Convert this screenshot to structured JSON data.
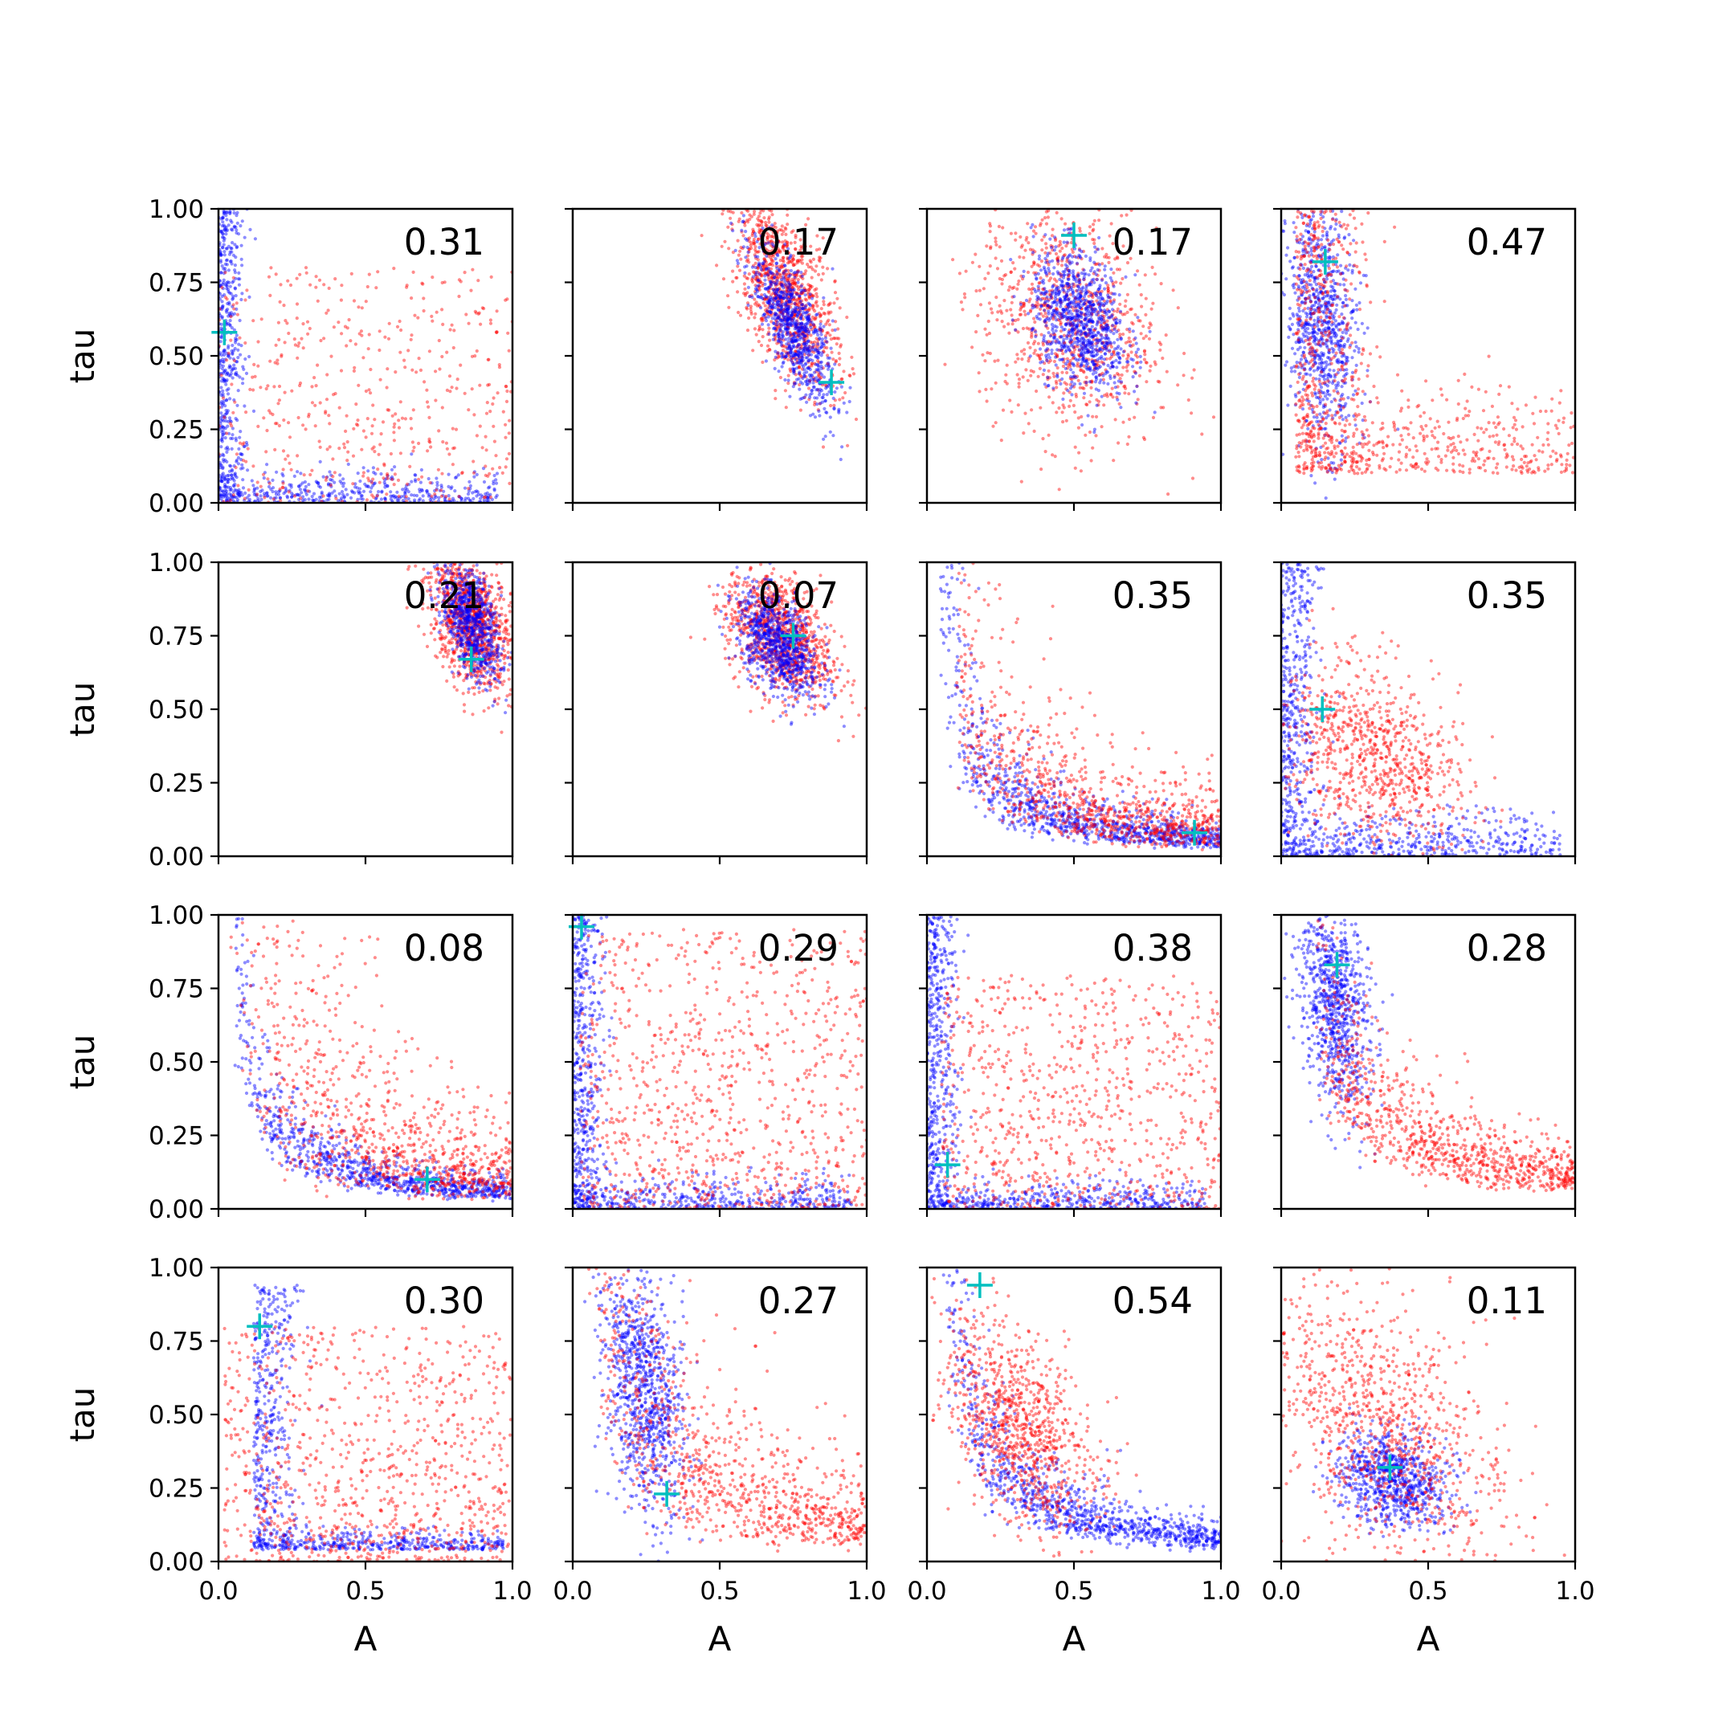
{
  "figure": {
    "xlabel": "A",
    "ylabel": "tau",
    "xticks": [
      "0.0",
      "0.5",
      "1.0"
    ],
    "yticks": [
      "0.00",
      "0.25",
      "0.50",
      "0.75",
      "1.00"
    ],
    "colors": {
      "series_a": "#ff0000",
      "series_b": "#0000ff",
      "marker": "#00bfbf",
      "axes": "#000000"
    }
  },
  "chart_data": [
    {
      "type": "scatter",
      "label": "0.31",
      "marker": [
        0.02,
        0.58
      ],
      "xlim": [
        0,
        1
      ],
      "ylim": [
        0,
        1
      ],
      "dists": [
        {
          "color": "blue",
          "n": 900,
          "shape": "L",
          "x0": 0.0,
          "y0": 0.0,
          "sx": 0.04,
          "sy": 0.05,
          "ax": 0.95,
          "ay": 1.0
        },
        {
          "color": "red",
          "n": 500,
          "shape": "box",
          "x0": 0.0,
          "x1": 1.0,
          "y0": 0.0,
          "y1": 0.8
        }
      ]
    },
    {
      "type": "scatter",
      "label": "0.17",
      "marker": [
        0.88,
        0.41
      ],
      "xlim": [
        0,
        1
      ],
      "ylim": [
        0,
        1
      ],
      "dists": [
        {
          "color": "red",
          "n": 1000,
          "shape": "gauss",
          "cx": 0.72,
          "cy": 0.72,
          "sx": 0.09,
          "sy": 0.17,
          "rho": -0.6
        },
        {
          "color": "blue",
          "n": 800,
          "shape": "gauss",
          "cx": 0.75,
          "cy": 0.6,
          "sx": 0.07,
          "sy": 0.14,
          "rho": -0.75
        }
      ]
    },
    {
      "type": "scatter",
      "label": "0.17",
      "marker": [
        0.5,
        0.91
      ],
      "xlim": [
        0,
        1
      ],
      "ylim": [
        0,
        1
      ],
      "dists": [
        {
          "color": "red",
          "n": 900,
          "shape": "gauss",
          "cx": 0.48,
          "cy": 0.62,
          "sx": 0.15,
          "sy": 0.2,
          "rho": -0.2
        },
        {
          "color": "blue",
          "n": 900,
          "shape": "gauss",
          "cx": 0.52,
          "cy": 0.62,
          "sx": 0.08,
          "sy": 0.12,
          "rho": -0.3
        }
      ]
    },
    {
      "type": "scatter",
      "label": "0.47",
      "marker": [
        0.15,
        0.82
      ],
      "xlim": [
        0,
        1
      ],
      "ylim": [
        0,
        1
      ],
      "dists": [
        {
          "color": "blue",
          "n": 800,
          "shape": "gauss",
          "cx": 0.14,
          "cy": 0.6,
          "sx": 0.06,
          "sy": 0.2,
          "rho": -0.2
        },
        {
          "color": "red",
          "n": 900,
          "shape": "L",
          "x0": 0.05,
          "y0": 0.1,
          "sx": 0.12,
          "sy": 0.12,
          "ax": 0.95,
          "ay": 0.9
        }
      ]
    },
    {
      "type": "scatter",
      "label": "0.21",
      "marker": [
        0.86,
        0.67
      ],
      "xlim": [
        0,
        1
      ],
      "ylim": [
        0,
        1
      ],
      "dists": [
        {
          "color": "red",
          "n": 1000,
          "shape": "gauss",
          "cx": 0.86,
          "cy": 0.8,
          "sx": 0.07,
          "sy": 0.12,
          "rho": -0.4
        },
        {
          "color": "blue",
          "n": 700,
          "shape": "gauss",
          "cx": 0.86,
          "cy": 0.8,
          "sx": 0.05,
          "sy": 0.1,
          "rho": -0.5
        }
      ]
    },
    {
      "type": "scatter",
      "label": "0.07",
      "marker": [
        0.75,
        0.75
      ],
      "xlim": [
        0,
        1
      ],
      "ylim": [
        0,
        1
      ],
      "dists": [
        {
          "color": "red",
          "n": 1000,
          "shape": "gauss",
          "cx": 0.7,
          "cy": 0.75,
          "sx": 0.09,
          "sy": 0.11,
          "rho": -0.4
        },
        {
          "color": "blue",
          "n": 800,
          "shape": "gauss",
          "cx": 0.7,
          "cy": 0.72,
          "sx": 0.07,
          "sy": 0.09,
          "rho": -0.5
        }
      ]
    },
    {
      "type": "scatter",
      "label": "0.35",
      "marker": [
        0.91,
        0.08
      ],
      "xlim": [
        0,
        1
      ],
      "ylim": [
        0,
        1
      ],
      "dists": [
        {
          "color": "blue",
          "n": 1000,
          "shape": "curve",
          "k": 0.06,
          "xmin": 0.03,
          "xmax": 1.0,
          "noise": 0.35
        },
        {
          "color": "red",
          "n": 900,
          "shape": "curve",
          "k": 0.09,
          "xmin": 0.1,
          "xmax": 1.0,
          "noise": 0.5
        }
      ]
    },
    {
      "type": "scatter",
      "label": "0.35",
      "marker": [
        0.14,
        0.5
      ],
      "xlim": [
        0,
        1
      ],
      "ylim": [
        0,
        1
      ],
      "dists": [
        {
          "color": "blue",
          "n": 900,
          "shape": "L",
          "x0": 0.0,
          "y0": 0.0,
          "sx": 0.06,
          "sy": 0.07,
          "ax": 0.95,
          "ay": 1.0
        },
        {
          "color": "red",
          "n": 800,
          "shape": "gauss",
          "cx": 0.3,
          "cy": 0.35,
          "sx": 0.16,
          "sy": 0.16,
          "rho": -0.4
        }
      ]
    },
    {
      "type": "scatter",
      "label": "0.08",
      "marker": [
        0.71,
        0.1
      ],
      "xlim": [
        0,
        1
      ],
      "ylim": [
        0,
        1
      ],
      "dists": [
        {
          "color": "blue",
          "n": 900,
          "shape": "curve",
          "k": 0.06,
          "xmin": 0.05,
          "xmax": 1.0,
          "noise": 0.3
        },
        {
          "color": "red",
          "n": 900,
          "shape": "curve",
          "k": 0.12,
          "xmin": 0.02,
          "xmax": 1.0,
          "noise": 0.6
        }
      ]
    },
    {
      "type": "scatter",
      "label": "0.29",
      "marker": [
        0.03,
        0.96
      ],
      "xlim": [
        0,
        1
      ],
      "ylim": [
        0,
        1
      ],
      "dists": [
        {
          "color": "blue",
          "n": 900,
          "shape": "L",
          "x0": 0.0,
          "y0": 0.0,
          "sx": 0.05,
          "sy": 0.05,
          "ax": 0.95,
          "ay": 1.0
        },
        {
          "color": "red",
          "n": 900,
          "shape": "box",
          "x0": 0.02,
          "x1": 1.0,
          "y0": 0.0,
          "y1": 0.95
        }
      ]
    },
    {
      "type": "scatter",
      "label": "0.38",
      "marker": [
        0.07,
        0.15
      ],
      "xlim": [
        0,
        1
      ],
      "ylim": [
        0,
        1
      ],
      "dists": [
        {
          "color": "blue",
          "n": 900,
          "shape": "L",
          "x0": 0.0,
          "y0": 0.0,
          "sx": 0.05,
          "sy": 0.04,
          "ax": 0.95,
          "ay": 1.0
        },
        {
          "color": "red",
          "n": 800,
          "shape": "box",
          "x0": 0.05,
          "x1": 1.0,
          "y0": 0.0,
          "y1": 0.8
        }
      ]
    },
    {
      "type": "scatter",
      "label": "0.28",
      "marker": [
        0.19,
        0.83
      ],
      "xlim": [
        0,
        1
      ],
      "ylim": [
        0,
        1
      ],
      "dists": [
        {
          "color": "blue",
          "n": 800,
          "shape": "gauss",
          "cx": 0.18,
          "cy": 0.7,
          "sx": 0.06,
          "sy": 0.18,
          "rho": -0.3
        },
        {
          "color": "red",
          "n": 900,
          "shape": "curve",
          "k": 0.11,
          "xmin": 0.12,
          "xmax": 1.0,
          "noise": 0.35
        }
      ]
    },
    {
      "type": "scatter",
      "label": "0.30",
      "marker": [
        0.14,
        0.8
      ],
      "xlim": [
        0,
        1
      ],
      "ylim": [
        0,
        1
      ],
      "dists": [
        {
          "color": "blue",
          "n": 800,
          "shape": "L",
          "x0": 0.12,
          "y0": 0.04,
          "sx": 0.07,
          "sy": 0.03,
          "ax": 0.85,
          "ay": 0.9
        },
        {
          "color": "red",
          "n": 900,
          "shape": "box",
          "x0": 0.02,
          "x1": 1.0,
          "y0": 0.0,
          "y1": 0.8
        }
      ]
    },
    {
      "type": "scatter",
      "label": "0.27",
      "marker": [
        0.32,
        0.23
      ],
      "xlim": [
        0,
        1
      ],
      "ylim": [
        0,
        1
      ],
      "dists": [
        {
          "color": "blue",
          "n": 900,
          "shape": "gauss",
          "cx": 0.24,
          "cy": 0.6,
          "sx": 0.07,
          "sy": 0.22,
          "rho": -0.4
        },
        {
          "color": "red",
          "n": 900,
          "shape": "curve",
          "k": 0.13,
          "xmin": 0.02,
          "xmax": 1.0,
          "noise": 0.5
        }
      ]
    },
    {
      "type": "scatter",
      "label": "0.54",
      "marker": [
        0.18,
        0.94
      ],
      "xlim": [
        0,
        1
      ],
      "ylim": [
        0,
        1
      ],
      "dists": [
        {
          "color": "blue",
          "n": 1000,
          "shape": "curve",
          "k": 0.08,
          "xmin": 0.05,
          "xmax": 1.0,
          "noise": 0.3
        },
        {
          "color": "red",
          "n": 900,
          "shape": "gauss",
          "cx": 0.32,
          "cy": 0.45,
          "sx": 0.13,
          "sy": 0.18,
          "rho": -0.5
        }
      ]
    },
    {
      "type": "scatter",
      "label": "0.11",
      "marker": [
        0.37,
        0.32
      ],
      "xlim": [
        0,
        1
      ],
      "ylim": [
        0,
        1
      ],
      "dists": [
        {
          "color": "blue",
          "n": 800,
          "shape": "gauss",
          "cx": 0.38,
          "cy": 0.28,
          "sx": 0.09,
          "sy": 0.08,
          "rho": -0.2
        },
        {
          "color": "red",
          "n": 900,
          "shape": "gauss",
          "cx": 0.35,
          "cy": 0.45,
          "sx": 0.22,
          "sy": 0.25,
          "rho": -0.5
        }
      ]
    }
  ]
}
